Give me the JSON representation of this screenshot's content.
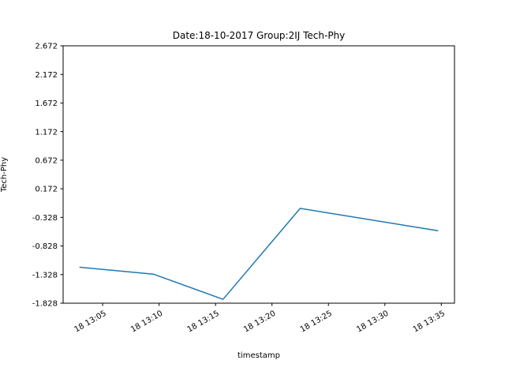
{
  "chart_data": {
    "type": "line",
    "title": "Date:18-10-2017 Group:2IJ Tech-Phy",
    "xlabel": "timestamp",
    "ylabel": "Tech-Phy",
    "x_is_time": true,
    "x": [
      "2017-10-18 13:03:00",
      "2017-10-18 13:09:30",
      "2017-10-18 13:15:40",
      "2017-10-18 13:22:30",
      "2017-10-18 13:34:40"
    ],
    "series": [
      {
        "values": [
          -1.2,
          -1.32,
          -1.76,
          -0.17,
          -0.56
        ],
        "color": "#1f77b4"
      }
    ],
    "xlim": [
      "2017-10-18 13:01:30",
      "2017-10-18 13:36:10"
    ],
    "ylim": [
      -1.828,
      2.672
    ],
    "yticks": [
      -1.828,
      -1.328,
      -0.828,
      -0.328,
      0.172,
      0.672,
      1.172,
      1.672,
      2.172,
      2.672
    ],
    "ytick_labels": [
      "-1.828",
      "-1.328",
      "-0.828",
      "-0.328",
      "0.172",
      "0.672",
      "1.172",
      "1.672",
      "2.172",
      "2.672"
    ],
    "xticks": [
      "2017-10-18 13:05:00",
      "2017-10-18 13:10:00",
      "2017-10-18 13:15:00",
      "2017-10-18 13:20:00",
      "2017-10-18 13:25:00",
      "2017-10-18 13:30:00",
      "2017-10-18 13:35:00"
    ],
    "xtick_labels": [
      "18 13:05",
      "18 13:10",
      "18 13:15",
      "18 13:20",
      "18 13:25",
      "18 13:30",
      "18 13:35"
    ],
    "grid": false,
    "legend": "none"
  }
}
